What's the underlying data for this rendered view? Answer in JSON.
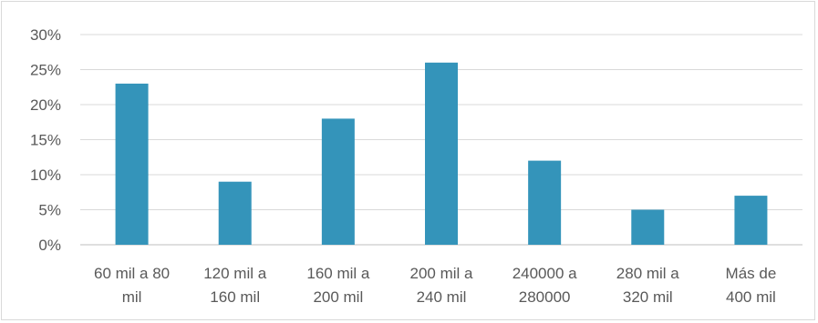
{
  "chart_data": {
    "type": "bar",
    "categories": [
      [
        "60 mil a 80",
        "mil"
      ],
      [
        "120 mil a",
        "160 mil"
      ],
      [
        "160 mil a",
        "200 mil"
      ],
      [
        "200 mil a",
        "240 mil"
      ],
      [
        "240000 a",
        "280000"
      ],
      [
        "280 mil a",
        "320 mil"
      ],
      [
        "Más de",
        "400 mil"
      ]
    ],
    "values": [
      23,
      9,
      18,
      26,
      12,
      5,
      7
    ],
    "ylim": [
      0,
      30
    ],
    "yticks": [
      "0%",
      "5%",
      "10%",
      "15%",
      "20%",
      "25%",
      "30%"
    ],
    "ytick_values": [
      0,
      5,
      10,
      15,
      20,
      25,
      30
    ],
    "grid": true,
    "colors": {
      "bar": "#3494ba",
      "grid": "#d9d9d9",
      "axis": "#bfbfbf"
    }
  }
}
